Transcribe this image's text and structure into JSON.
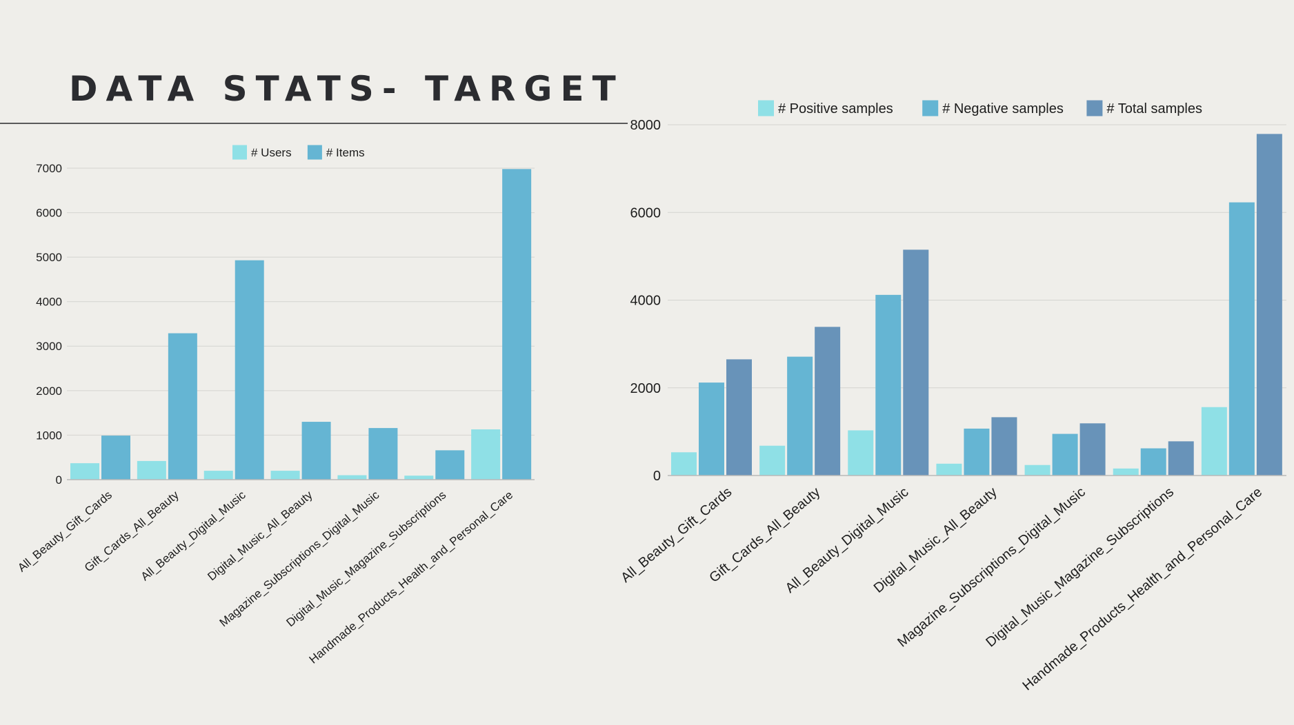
{
  "slide": {
    "title": "DATA STATS- TARGET"
  },
  "colors": {
    "light": "#8fe0e6",
    "mid": "#65b5d3",
    "dark": "#6893b9",
    "grid": "#d4d4d0",
    "axis": "#b8b8b8"
  },
  "chart_data": [
    {
      "type": "bar",
      "title": "",
      "xlabel": "",
      "ylabel": "",
      "ylim": [
        0,
        7000
      ],
      "yticks": [
        0,
        1000,
        2000,
        3000,
        4000,
        5000,
        6000,
        7000
      ],
      "grid": true,
      "legend": "top-center",
      "categories": [
        "All_Beauty_Gift_Cards",
        "Gift_Cards_All_Beauty",
        "All_Beauty_Digital_Music",
        "Digital_Music_All_Beauty",
        "Magazine_Subscriptions_Digital_Music",
        "Digital_Music_Magazine_Subscriptions",
        "Handmade_Products_Health_and_Personal_Care"
      ],
      "series": [
        {
          "name": "# Users",
          "color": "#8fe0e6",
          "values": [
            370,
            420,
            200,
            200,
            100,
            90,
            1130
          ]
        },
        {
          "name": "# Items",
          "color": "#65b5d3",
          "values": [
            990,
            3290,
            4930,
            1300,
            1160,
            660,
            6980
          ]
        }
      ]
    },
    {
      "type": "bar",
      "title": "",
      "xlabel": "",
      "ylabel": "",
      "ylim": [
        0,
        8000
      ],
      "yticks": [
        0,
        2000,
        4000,
        6000,
        8000
      ],
      "grid": true,
      "legend": "top-center",
      "categories": [
        "All_Beauty_Gift_Cards",
        "Gift_Cards_All_Beauty",
        "All_Beauty_Digital_Music",
        "Digital_Music_All_Beauty",
        "Magazine_Subscriptions_Digital_Music",
        "Digital_Music_Magazine_Subscriptions",
        "Handmade_Products_Health_and_Personal_Care"
      ],
      "series": [
        {
          "name": "# Positive samples",
          "color": "#8fe0e6",
          "values": [
            530,
            680,
            1030,
            270,
            240,
            160,
            1560
          ]
        },
        {
          "name": "# Negative samples",
          "color": "#65b5d3",
          "values": [
            2120,
            2710,
            4120,
            1070,
            950,
            620,
            6230
          ]
        },
        {
          "name": "# Total samples",
          "color": "#6893b9",
          "values": [
            2650,
            3390,
            5150,
            1330,
            1190,
            780,
            7790
          ]
        }
      ]
    }
  ]
}
